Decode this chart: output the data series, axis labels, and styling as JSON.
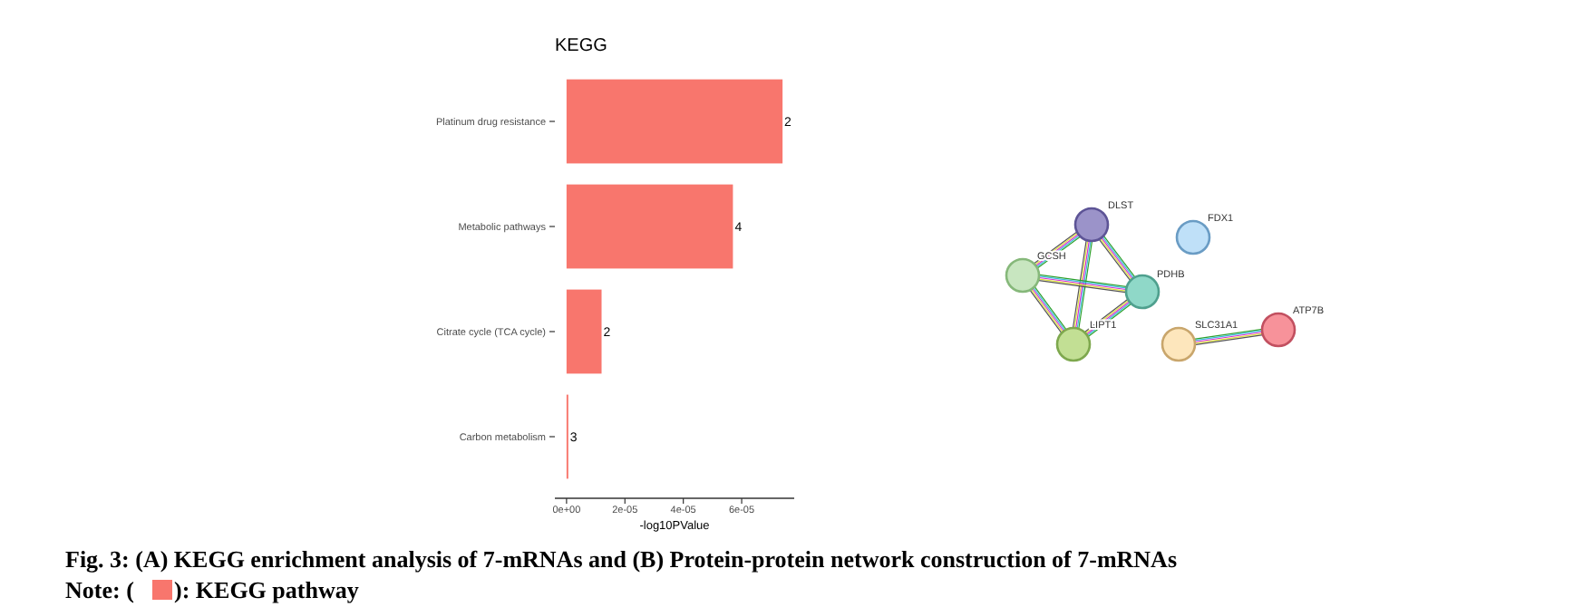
{
  "chart_data": [
    {
      "type": "bar",
      "orientation": "horizontal",
      "title": "KEGG",
      "xlabel": "-log10PValue",
      "categories": [
        "Platinum drug resistance",
        "Metabolic pathways",
        "Citrate cycle (TCA cycle)",
        "Carbon metabolism"
      ],
      "values": [
        7.4e-05,
        5.7e-05,
        1.2e-05,
        6e-07
      ],
      "color": "#f8766d",
      "xlim": [
        -4e-06,
        7.8e-05
      ],
      "xticks": [
        {
          "value": 0,
          "label": "0e+00"
        },
        {
          "value": 2e-05,
          "label": "2e-05"
        },
        {
          "value": 4e-05,
          "label": "4e-05"
        },
        {
          "value": 6e-05,
          "label": "6e-05"
        }
      ],
      "annotations": [
        {
          "text": "2",
          "x": 7.4e-05,
          "y": "Platinum drug resistance"
        },
        {
          "text": "4",
          "x": 5.7e-05,
          "y": "Metabolic pathways"
        },
        {
          "text": "2",
          "x": 1.2e-05,
          "y": "Citrate cycle (TCA cycle)"
        },
        {
          "text": "3",
          "x": 6e-07,
          "y": "Carbon metabolism"
        },
        "Fig. 3: (A) KEGG enrichment analysis of 7-mRNAs and (B) Protein-protein network construction of 7-mRNAs",
        "Note: ( ): KEGG pathway"
      ]
    },
    {
      "type": "other",
      "annotations": [
        "DLST",
        "FDX1",
        "GCSH",
        "PDHB",
        "LIPT1",
        "SLC31A1",
        "ATP7B"
      ]
    }
  ]
}
